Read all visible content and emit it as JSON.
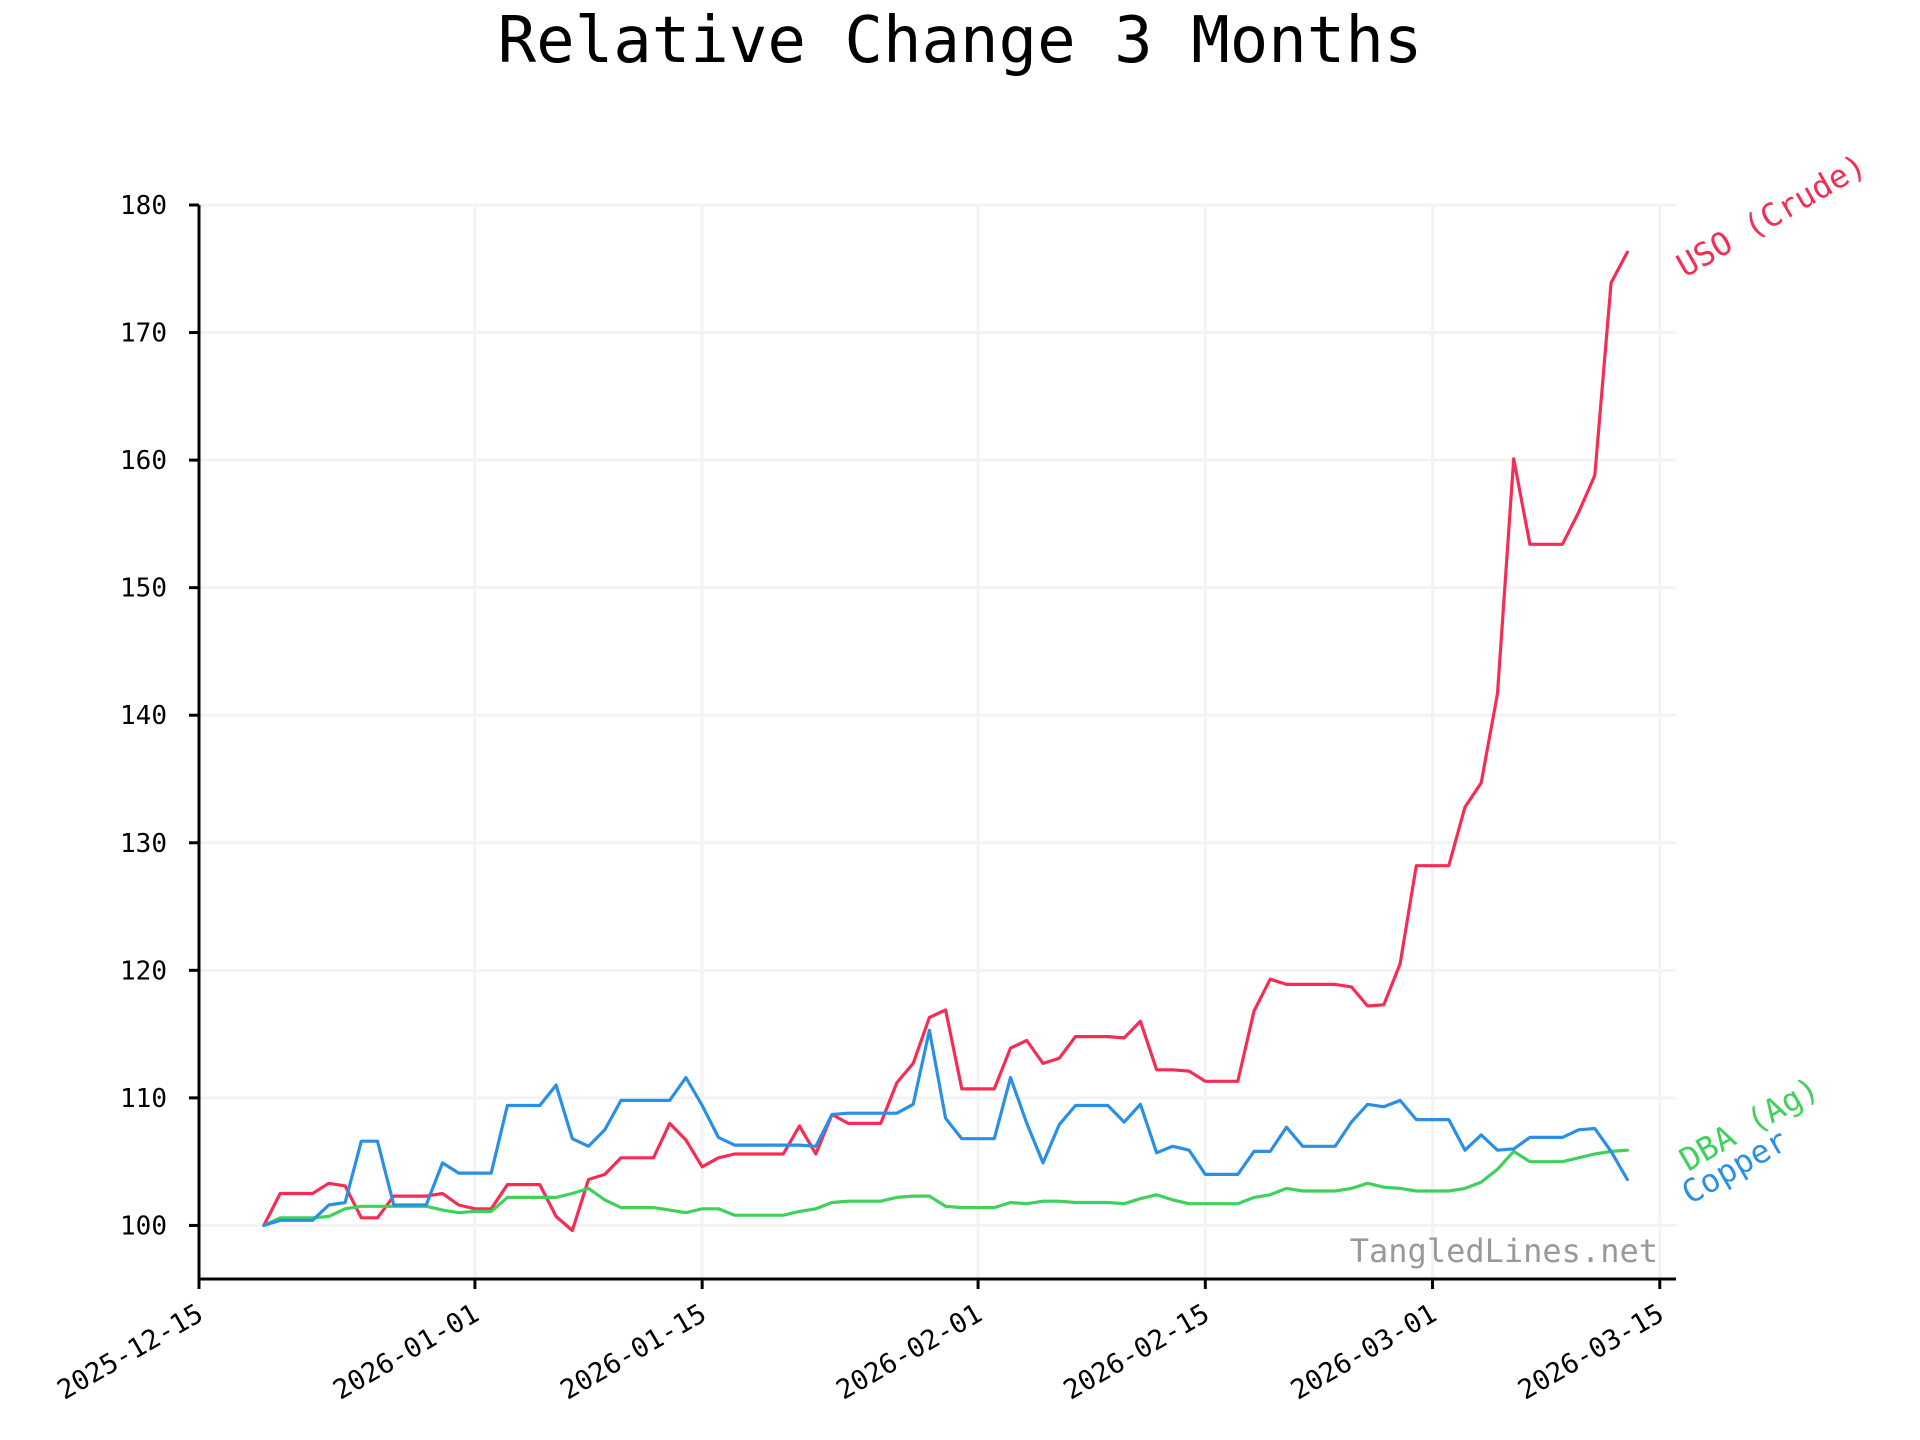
{
  "chart_data": {
    "type": "line",
    "title": "Relative Change 3 Months",
    "xlabel": "",
    "ylabel": "",
    "ylim": [
      95.8,
      180
    ],
    "xlim": [
      "2025-12-15",
      "2026-03-16"
    ],
    "grid": true,
    "y_ticks": [
      100,
      110,
      120,
      130,
      140,
      150,
      160,
      170,
      180
    ],
    "x_ticks": [
      "2025-12-15",
      "2026-01-01",
      "2026-01-15",
      "2026-02-01",
      "2026-02-15",
      "2026-03-01",
      "2026-03-15"
    ],
    "x": [
      "2025-12-19",
      "2025-12-20",
      "2025-12-21",
      "2025-12-22",
      "2025-12-23",
      "2025-12-24",
      "2025-12-25",
      "2025-12-26",
      "2025-12-27",
      "2025-12-28",
      "2025-12-29",
      "2025-12-30",
      "2025-12-31",
      "2026-01-01",
      "2026-01-02",
      "2026-01-03",
      "2026-01-04",
      "2026-01-05",
      "2026-01-06",
      "2026-01-07",
      "2026-01-08",
      "2026-01-09",
      "2026-01-10",
      "2026-01-11",
      "2026-01-12",
      "2026-01-13",
      "2026-01-14",
      "2026-01-15",
      "2026-01-16",
      "2026-01-17",
      "2026-01-18",
      "2026-01-19",
      "2026-01-20",
      "2026-01-21",
      "2026-01-22",
      "2026-01-23",
      "2026-01-24",
      "2026-01-25",
      "2026-01-26",
      "2026-01-27",
      "2026-01-28",
      "2026-01-29",
      "2026-01-30",
      "2026-01-31",
      "2026-02-01",
      "2026-02-02",
      "2026-02-03",
      "2026-02-04",
      "2026-02-05",
      "2026-02-06",
      "2026-02-07",
      "2026-02-08",
      "2026-02-09",
      "2026-02-10",
      "2026-02-11",
      "2026-02-12",
      "2026-02-13",
      "2026-02-14",
      "2026-02-15",
      "2026-02-16",
      "2026-02-17",
      "2026-02-18",
      "2026-02-19",
      "2026-02-20",
      "2026-02-21",
      "2026-02-22",
      "2026-02-23",
      "2026-02-24",
      "2026-02-25",
      "2026-02-26",
      "2026-02-27",
      "2026-02-28",
      "2026-03-01",
      "2026-03-02",
      "2026-03-03",
      "2026-03-04",
      "2026-03-05",
      "2026-03-06",
      "2026-03-07",
      "2026-03-08",
      "2026-03-09",
      "2026-03-10",
      "2026-03-11",
      "2026-03-12",
      "2026-03-13"
    ],
    "series": [
      {
        "name": "USO (Crude)",
        "color": "#f52d55",
        "values": [
          100.0,
          102.5,
          102.5,
          102.5,
          103.3,
          103.1,
          100.6,
          100.6,
          102.3,
          102.3,
          102.3,
          102.5,
          101.6,
          101.3,
          101.3,
          103.2,
          103.2,
          103.2,
          100.7,
          99.6,
          103.6,
          104.0,
          105.3,
          105.3,
          105.3,
          108.0,
          106.7,
          104.6,
          105.3,
          105.6,
          105.6,
          105.6,
          105.6,
          107.8,
          105.6,
          108.7,
          108.0,
          108.0,
          108.0,
          111.2,
          112.7,
          116.3,
          116.9,
          110.7,
          110.7,
          110.7,
          113.9,
          114.5,
          112.7,
          113.1,
          114.8,
          114.8,
          114.8,
          114.7,
          116.0,
          112.2,
          112.2,
          112.1,
          111.3,
          111.3,
          111.3,
          116.8,
          119.3,
          118.9,
          118.9,
          118.9,
          118.9,
          118.7,
          117.2,
          117.3,
          120.5,
          128.2,
          128.2,
          128.2,
          132.8,
          134.7,
          141.7,
          160.1,
          153.4,
          153.4,
          153.4,
          155.9,
          158.8,
          173.9,
          176.3
        ]
      },
      {
        "name": "DBA (Ag)",
        "color": "#3fd15a",
        "values": [
          100.0,
          100.6,
          100.6,
          100.6,
          100.7,
          101.3,
          101.5,
          101.5,
          101.5,
          101.5,
          101.5,
          101.2,
          101.0,
          101.1,
          101.1,
          102.2,
          102.2,
          102.2,
          102.2,
          102.5,
          102.9,
          102.0,
          101.4,
          101.4,
          101.4,
          101.2,
          101.0,
          101.3,
          101.3,
          100.8,
          100.8,
          100.8,
          100.8,
          101.1,
          101.3,
          101.8,
          101.9,
          101.9,
          101.9,
          102.2,
          102.3,
          102.3,
          101.5,
          101.4,
          101.4,
          101.4,
          101.8,
          101.7,
          101.9,
          101.9,
          101.8,
          101.8,
          101.8,
          101.7,
          102.1,
          102.4,
          102.0,
          101.7,
          101.7,
          101.7,
          101.7,
          102.2,
          102.4,
          102.9,
          102.7,
          102.7,
          102.7,
          102.9,
          103.3,
          103.0,
          102.9,
          102.7,
          102.7,
          102.7,
          102.9,
          103.4,
          104.4,
          105.8,
          105.0,
          105.0,
          105.0,
          105.3,
          105.6,
          105.8,
          105.9
        ]
      },
      {
        "name": "Copper",
        "color": "#2a90e6",
        "values": [
          100.0,
          100.4,
          100.4,
          100.4,
          101.6,
          101.8,
          106.6,
          106.6,
          101.6,
          101.6,
          101.6,
          104.9,
          104.1,
          104.1,
          104.1,
          109.4,
          109.4,
          109.4,
          111.0,
          106.8,
          106.2,
          107.5,
          109.8,
          109.8,
          109.8,
          109.8,
          111.6,
          109.4,
          106.9,
          106.3,
          106.3,
          106.3,
          106.3,
          106.3,
          106.2,
          108.7,
          108.8,
          108.8,
          108.8,
          108.8,
          109.5,
          115.3,
          108.4,
          106.8,
          106.8,
          106.8,
          111.6,
          108.0,
          104.9,
          107.9,
          109.4,
          109.4,
          109.4,
          108.1,
          109.5,
          105.7,
          106.2,
          105.9,
          104.0,
          104.0,
          104.0,
          105.8,
          105.8,
          107.7,
          106.2,
          106.2,
          106.2,
          108.1,
          109.5,
          109.3,
          109.8,
          108.3,
          108.3,
          108.3,
          105.9,
          107.1,
          105.9,
          106.0,
          106.9,
          106.9,
          106.9,
          107.5,
          107.6,
          105.8,
          103.6
        ]
      }
    ],
    "watermark": "TangledLines.net",
    "watermark_color": "#999999"
  }
}
